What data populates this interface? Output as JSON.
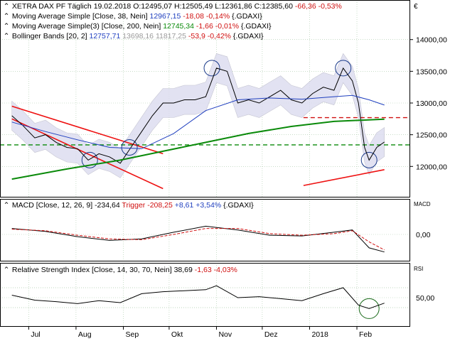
{
  "legend": {
    "main": {
      "symbol": "XETRA DAX PF Täglich",
      "date": "19.02.2018",
      "ohlc": "O:12495,07 H:12505,49 L:12361,86 C:12385,60",
      "change": "-66,36 -0,53%"
    },
    "ma38": {
      "label": "Moving Average Simple [Close, 38, Nein]",
      "value": "12967,15",
      "change": "-18,08 -0,14%",
      "ref": "{.GDAXI}"
    },
    "ma200": {
      "label": "Moving Average Simple(3) [Close, 200, Nein]",
      "value": "12745,34",
      "change": "-1,66 -0,01%",
      "ref": "{.GDAXI}"
    },
    "bb": {
      "label": "Bollinger Bands [20, 2]",
      "upper": "12757,71",
      "mid": "13698,16",
      "lower": "11817,25",
      "change": "-53,9 -0,42%",
      "ref": "{.GDAXI}"
    }
  },
  "macd_legend": {
    "label": "MACD [Close, 12, 26, 9]",
    "value": "-234,64",
    "trigger_label": "Trigger",
    "trigger_value": "-208,25",
    "change": "+8,61 +3,54%",
    "ref": "{.GDAXI}"
  },
  "rsi_legend": {
    "label": "Relative Strength Index [Close, 14, 30, 70, Nein]",
    "value": "38,69",
    "change": "-1,63 -4,03%",
    "ref": "{.GDAXI}"
  },
  "panel_labels": {
    "euro": "€",
    "macd": "MACD",
    "rsi": "RSI"
  },
  "colors": {
    "price": "#000000",
    "ma38": "#1f3fbf",
    "ma200": "#0a8a0a",
    "bb_fill": "#dcdcef",
    "trend_red": "#ee1111",
    "support_green": "#0a8a0a",
    "resistance_red": "#d01010",
    "macd_trigger": "#d01010",
    "grid": "#a8c8a8"
  },
  "chart_data": [
    {
      "type": "line",
      "title": "XETRA DAX PF Täglich",
      "x_ticks": [
        "Jul",
        "Aug",
        "Sep",
        "Okt",
        "Nov",
        "Dez",
        "2018",
        "Feb"
      ],
      "x_tick_dates": [
        "2017-07-01",
        "2017-08-01",
        "2017-09-01",
        "2017-10-01",
        "2017-11-01",
        "2017-12-01",
        "2018-01-01",
        "2018-02-01"
      ],
      "y_ticks": [
        12000,
        12500,
        13000,
        13500,
        14000
      ],
      "y_tick_labels": [
        "12000,00",
        "12500,00",
        "13000,00",
        "13500,00",
        "14000,00"
      ],
      "ylim": [
        11600,
        14400
      ],
      "grid": true,
      "series": [
        {
          "name": "XETRA DAX PF Täglich",
          "x": [
            "2017-06-20",
            "2017-06-27",
            "2017-07-05",
            "2017-07-12",
            "2017-07-19",
            "2017-07-26",
            "2017-08-02",
            "2017-08-09",
            "2017-08-16",
            "2017-08-23",
            "2017-08-30",
            "2017-09-06",
            "2017-09-13",
            "2017-09-20",
            "2017-09-27",
            "2017-10-04",
            "2017-10-11",
            "2017-10-18",
            "2017-10-25",
            "2017-11-01",
            "2017-11-08",
            "2017-11-15",
            "2017-11-22",
            "2017-11-29",
            "2017-12-06",
            "2017-12-13",
            "2017-12-20",
            "2017-12-27",
            "2018-01-03",
            "2018-01-10",
            "2018-01-17",
            "2018-01-23",
            "2018-01-29",
            "2018-02-02",
            "2018-02-06",
            "2018-02-09",
            "2018-02-14",
            "2018-02-19"
          ],
          "y": [
            12800,
            12650,
            12450,
            12500,
            12380,
            12300,
            12280,
            12100,
            12200,
            12150,
            12050,
            12300,
            12550,
            12800,
            13000,
            13000,
            13050,
            13050,
            13100,
            13550,
            13500,
            13000,
            13050,
            13000,
            13100,
            13200,
            13050,
            13000,
            13150,
            13250,
            13200,
            13550,
            13350,
            13000,
            12300,
            12100,
            12300,
            12385
          ]
        },
        {
          "name": "Moving Average Simple [Close, 38, Nein]",
          "x": [
            "2017-06-20",
            "2017-07-12",
            "2017-08-02",
            "2017-08-23",
            "2017-09-13",
            "2017-10-04",
            "2017-10-25",
            "2017-11-15",
            "2017-12-06",
            "2017-12-27",
            "2018-01-17",
            "2018-01-29",
            "2018-02-09",
            "2018-02-19"
          ],
          "y": [
            12700,
            12550,
            12420,
            12300,
            12280,
            12520,
            12880,
            13050,
            13080,
            13060,
            13100,
            13120,
            13050,
            12967
          ]
        },
        {
          "name": "Moving Average Simple(3) [Close, 200, Nein]",
          "x": [
            "2017-06-20",
            "2017-07-26",
            "2017-08-30",
            "2017-09-27",
            "2017-10-25",
            "2017-11-22",
            "2017-12-20",
            "2018-01-17",
            "2018-02-19"
          ],
          "y": [
            11800,
            11960,
            12100,
            12240,
            12380,
            12520,
            12630,
            12710,
            12745
          ]
        }
      ],
      "bollinger": {
        "upper": "12757,71",
        "mid": "13698,16",
        "lower": "11817,25"
      },
      "annotations": [
        {
          "kind": "horizontal-line",
          "color": "green",
          "style": "dashed",
          "y": 12340
        },
        {
          "kind": "horizontal-line",
          "color": "red",
          "style": "dashed",
          "y": 12770,
          "from": "2017-12-28"
        },
        {
          "kind": "trend-channel",
          "color": "red",
          "x": [
            "2017-06-20",
            "2017-09-27"
          ],
          "upper": [
            12950,
            12200
          ],
          "lower": [
            12750,
            11650
          ]
        },
        {
          "kind": "trend-line",
          "color": "red",
          "x": [
            "2017-12-28",
            "2018-02-19"
          ],
          "y": [
            11700,
            11950
          ]
        },
        {
          "kind": "circle-marker",
          "at": [
            "2017-08-10",
            "2017-09-05",
            "2017-10-29",
            "2018-01-23",
            "2018-02-09"
          ]
        }
      ]
    },
    {
      "type": "line",
      "title": "MACD [Close, 12, 26, 9]",
      "y_ticks": [
        0
      ],
      "y_tick_labels": [
        "0,00"
      ],
      "grid": true,
      "series": [
        {
          "name": "MACD [Close, 12, 26, 9]",
          "x": [
            "2017-06-20",
            "2017-07-12",
            "2017-08-02",
            "2017-08-23",
            "2017-09-13",
            "2017-10-04",
            "2017-10-25",
            "2017-11-15",
            "2017-12-06",
            "2017-12-27",
            "2018-01-17",
            "2018-01-29",
            "2018-02-09",
            "2018-02-19"
          ],
          "y": [
            80,
            40,
            -30,
            -80,
            -60,
            30,
            110,
            60,
            -10,
            -20,
            30,
            60,
            -180,
            -235
          ]
        },
        {
          "name": "Trigger",
          "x": [
            "2017-06-20",
            "2017-07-12",
            "2017-08-02",
            "2017-08-23",
            "2017-09-13",
            "2017-10-04",
            "2017-10-25",
            "2017-11-15",
            "2017-12-06",
            "2017-12-27",
            "2018-01-17",
            "2018-01-29",
            "2018-02-09",
            "2018-02-19"
          ],
          "y": [
            70,
            50,
            -10,
            -60,
            -70,
            0,
            80,
            80,
            10,
            -10,
            10,
            50,
            -100,
            -208
          ]
        }
      ]
    },
    {
      "type": "line",
      "title": "Relative Strength Index [Close, 14, 30, 70, Nein]",
      "y_ticks": [
        50
      ],
      "y_tick_labels": [
        "50,00"
      ],
      "ylim": [
        0,
        100
      ],
      "grid": true,
      "series": [
        {
          "name": "Relative Strength Index [Close, 14, 30, 70, Nein]",
          "x": [
            "2017-06-20",
            "2017-07-05",
            "2017-07-19",
            "2017-08-02",
            "2017-08-16",
            "2017-08-30",
            "2017-09-13",
            "2017-09-27",
            "2017-10-11",
            "2017-10-25",
            "2017-11-01",
            "2017-11-15",
            "2017-11-29",
            "2017-12-13",
            "2017-12-27",
            "2018-01-10",
            "2018-01-23",
            "2018-02-02",
            "2018-02-09",
            "2018-02-19"
          ],
          "y": [
            55,
            45,
            42,
            38,
            44,
            40,
            58,
            62,
            64,
            66,
            74,
            50,
            52,
            48,
            44,
            58,
            70,
            35,
            28,
            39
          ]
        }
      ],
      "annotations": [
        {
          "kind": "horizontal-line",
          "style": "dotted",
          "y": 70
        },
        {
          "kind": "horizontal-line",
          "style": "dotted",
          "y": 30
        },
        {
          "kind": "circle-marker",
          "at": [
            "2018-02-09"
          ]
        }
      ]
    }
  ]
}
